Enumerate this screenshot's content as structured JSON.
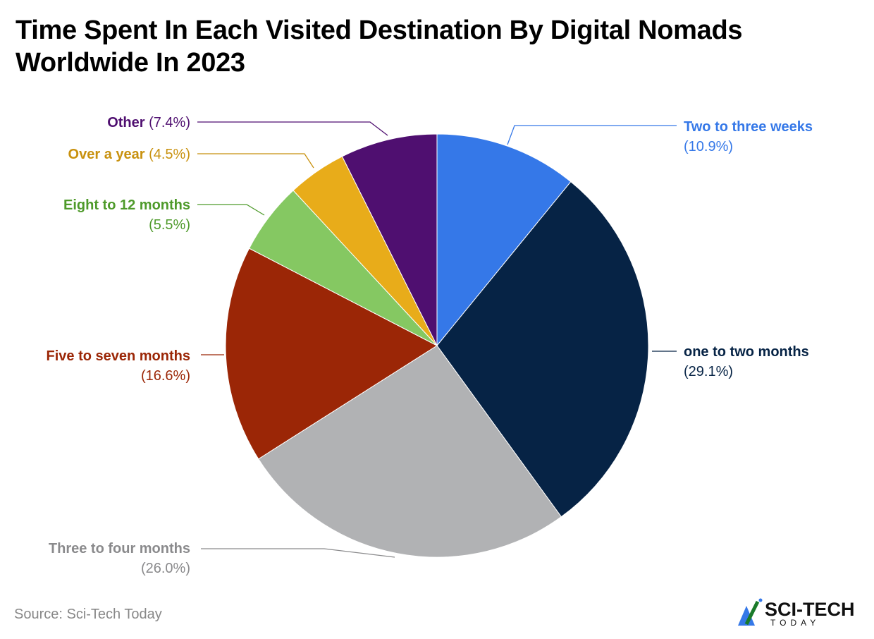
{
  "chart_data": {
    "type": "pie",
    "title": "Time Spent In Each Visited Destination By Digital Nomads Worldwide In 2023",
    "start": "top",
    "direction": "clockwise",
    "slices": [
      {
        "label": "Two to three weeks",
        "value": 10.9,
        "value_label": "(10.9%)",
        "color": "#3578e8",
        "label_color": "#3578e8"
      },
      {
        "label": "one to two months",
        "value": 29.1,
        "value_label": "(29.1%)",
        "color": "#062345",
        "label_color": "#062345"
      },
      {
        "label": "Three to four months",
        "value": 26.0,
        "value_label": "(26.0%)",
        "color": "#b1b2b4",
        "label_color": "#8a8a8c"
      },
      {
        "label": "Five to seven months",
        "value": 16.6,
        "value_label": "(16.6%)",
        "color": "#9b2606",
        "label_color": "#9b2606"
      },
      {
        "label": "Eight to 12 months",
        "value": 5.5,
        "value_label": "(5.5%)",
        "color": "#85c862",
        "label_color": "#4e9a2a"
      },
      {
        "label": "Over a year",
        "value": 4.5,
        "value_label": "(4.5%)",
        "color": "#e8ac1a",
        "label_color": "#c8910e"
      },
      {
        "label": "Other",
        "value": 7.4,
        "value_label": "(7.4%)",
        "color": "#4f0f70",
        "label_color": "#4f0f70"
      }
    ]
  },
  "source": "Source: Sci-Tech Today",
  "logo": {
    "text": "SCI-TECH",
    "subtext": "TODAY"
  }
}
